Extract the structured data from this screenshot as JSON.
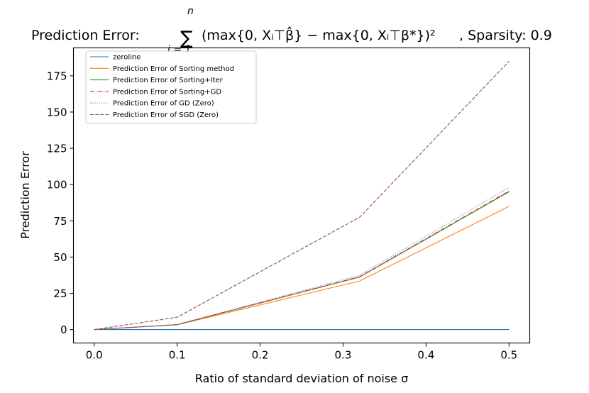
{
  "chart_data": {
    "type": "line",
    "title_prefix": "Prediction Error: ",
    "title_formula_sum": "∑",
    "title_formula_upper": "n",
    "title_formula_lower": "i = 1",
    "title_formula_body": "(max{0, Xᵢ⊤β̂} − max{0, Xᵢ⊤β*})²",
    "title_suffix": ", Sparsity: 0.9",
    "xlabel": "Ratio of standard deviation of noise σ",
    "ylabel": "Prediction Error",
    "xlim": [
      -0.025,
      0.525
    ],
    "ylim": [
      -9.25,
      194.25
    ],
    "x_ticks": [
      0.0,
      0.1,
      0.2,
      0.3,
      0.4,
      0.5
    ],
    "x_tick_labels": [
      "0.0",
      "0.1",
      "0.2",
      "0.3",
      "0.4",
      "0.5"
    ],
    "y_ticks": [
      0,
      25,
      50,
      75,
      100,
      125,
      150,
      175
    ],
    "y_tick_labels": [
      "0",
      "25",
      "50",
      "75",
      "100",
      "125",
      "150",
      "175"
    ],
    "legend_position": "top-left",
    "x": [
      0.0,
      0.1,
      0.32,
      0.5
    ],
    "series": [
      {
        "name": "zeroline",
        "values": [
          0,
          0,
          0,
          0
        ],
        "color": "#1f77b4",
        "dash": "solid"
      },
      {
        "name": "Prediction Error of Sorting method",
        "values": [
          0,
          3.3,
          33.5,
          85
        ],
        "color": "#ff7f0e",
        "dash": "solid"
      },
      {
        "name": "Prediction Error of Sorting+Iter",
        "values": [
          0,
          3.4,
          36.2,
          95
        ],
        "color": "#2ca02c",
        "dash": "solid"
      },
      {
        "name": "Prediction Error of Sorting+GD",
        "values": [
          0,
          3.4,
          36.5,
          95.5
        ],
        "color": "#d62728",
        "dash": "dashdot"
      },
      {
        "name": "Prediction Error of GD (Zero)",
        "values": [
          0,
          3.5,
          37.5,
          98
        ],
        "color": "#9467bd",
        "dash": "dotted"
      },
      {
        "name": "Prediction Error of SGD (Zero)",
        "values": [
          0,
          8.5,
          77.5,
          185
        ],
        "color": "#8c564b",
        "dash": "dashed"
      }
    ]
  }
}
